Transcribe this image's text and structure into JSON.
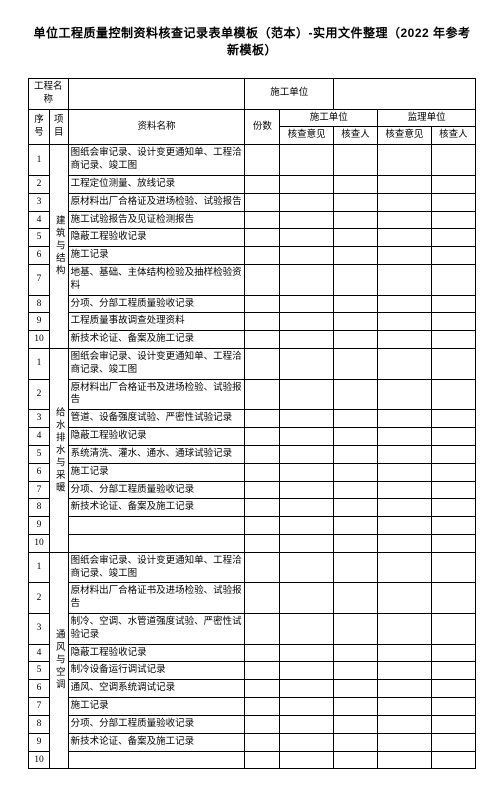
{
  "title": "单位工程质量控制资料核查记录表单模板（范本）-实用文件整理（2022 年参考新模板）",
  "info": {
    "project_label": "工程名称",
    "contractor_label": "施工单位",
    "project_value": "",
    "contractor_value": ""
  },
  "headers": {
    "seq": "序号",
    "item": "项目",
    "doc_name": "资料名称",
    "copies": "份数",
    "group1": "施工单位",
    "group2": "监理单位",
    "opinion": "核查意见",
    "person": "核查人"
  },
  "sections": [
    {
      "item_label": "建筑与结构",
      "rows": [
        {
          "n": "1",
          "name": "图纸会审记录、设计变更通知单、工程洽商记录、竣工图"
        },
        {
          "n": "2",
          "name": "工程定位测量、放线记录"
        },
        {
          "n": "3",
          "name": "原材料出厂合格证及进场检验、试验报告"
        },
        {
          "n": "4",
          "name": "施工试验报告及见证检测报告"
        },
        {
          "n": "5",
          "name": "隐蔽工程验收记录"
        },
        {
          "n": "6",
          "name": "施工记录"
        },
        {
          "n": "7",
          "name": "地基、基础、主体结构检验及抽样检验资料"
        },
        {
          "n": "8",
          "name": "分项、分部工程质量验收记录"
        },
        {
          "n": "9",
          "name": "工程质量事故调查处理资料"
        },
        {
          "n": "10",
          "name": "新技术论证、备案及施工记录"
        }
      ]
    },
    {
      "item_label": "给水排水与采暖",
      "rows": [
        {
          "n": "1",
          "name": "图纸会审记录、设计变更通知单、工程洽商记录、竣工图"
        },
        {
          "n": "2",
          "name": "原材料出厂合格证书及进场检验、试验报告"
        },
        {
          "n": "3",
          "name": "管道、设备强度试验、严密性试验记录"
        },
        {
          "n": "4",
          "name": "隐蔽工程验收记录"
        },
        {
          "n": "5",
          "name": "系统清洗、灌水、通水、通球试验记录"
        },
        {
          "n": "6",
          "name": "施工记录"
        },
        {
          "n": "7",
          "name": "分项、分部工程质量验收记录"
        },
        {
          "n": "8",
          "name": "新技术论证、备案及施工记录"
        },
        {
          "n": "9",
          "name": ""
        },
        {
          "n": "10",
          "name": ""
        }
      ]
    },
    {
      "item_label": "通风与空调",
      "rows": [
        {
          "n": "1",
          "name": "图纸会审记录、设计变更通知单、工程洽商记录、竣工图"
        },
        {
          "n": "2",
          "name": "原材料出厂合格证书及进场检验、试验报告"
        },
        {
          "n": "3",
          "name": "制冷、空调、水管道强度试验、严密性试验记录"
        },
        {
          "n": "4",
          "name": "隐蔽工程验收记录"
        },
        {
          "n": "5",
          "name": "制冷设备运行调试记录"
        },
        {
          "n": "6",
          "name": "通风、空调系统调试记录"
        },
        {
          "n": "7",
          "name": "施工记录"
        },
        {
          "n": "8",
          "name": "分项、分部工程质量验收记录"
        },
        {
          "n": "9",
          "name": "新技术论证、备案及施工记录"
        },
        {
          "n": "10",
          "name": ""
        }
      ]
    }
  ],
  "style": {
    "background_color": "#ffffff",
    "border_color": "#000000",
    "text_color": "#000000",
    "title_fontsize": 12,
    "body_fontsize": 9.5
  }
}
